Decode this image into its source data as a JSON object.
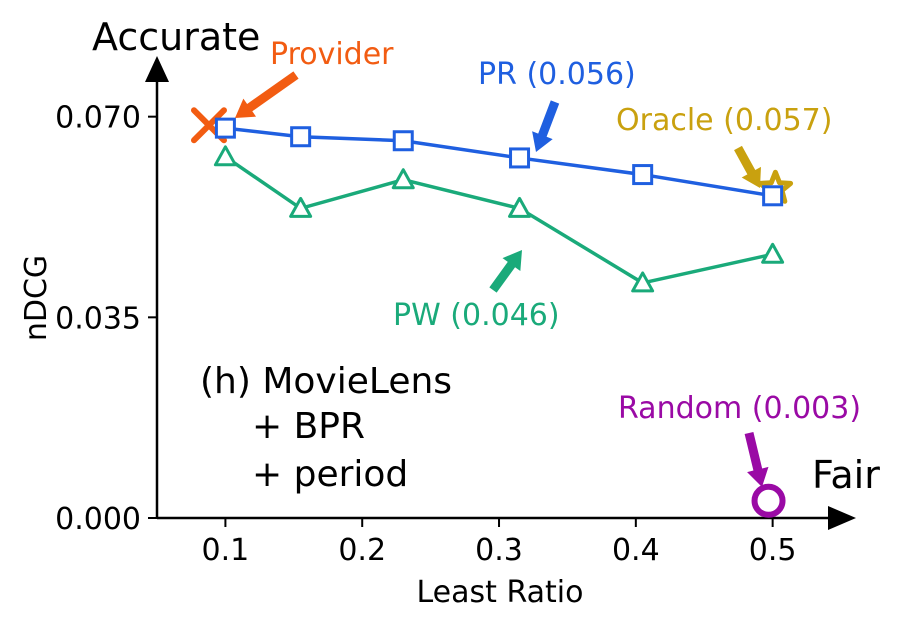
{
  "chart_data": {
    "type": "line",
    "panel_title_lines": [
      "(h) MovieLens",
      "+ BPR",
      "+ period"
    ],
    "xlabel": "Least Ratio",
    "ylabel": "nDCG",
    "xlim": [
      0.05,
      0.52
    ],
    "ylim": [
      0.0,
      0.075
    ],
    "x_ticks": [
      0.1,
      0.2,
      0.3,
      0.4,
      0.5
    ],
    "x_tick_labels": [
      "0.1",
      "0.2",
      "0.3",
      "0.4",
      "0.5"
    ],
    "y_ticks": [
      0.0,
      0.035,
      0.07
    ],
    "y_tick_labels": [
      "0.000",
      "0.035",
      "0.070"
    ],
    "axis_end_labels": {
      "y": "Accurate",
      "x": "Fair"
    },
    "grid": false,
    "series": [
      {
        "name": "PR",
        "marker": "square",
        "color": "#1f5fe0",
        "x": [
          0.1,
          0.155,
          0.23,
          0.315,
          0.405,
          0.5
        ],
        "y": [
          0.068,
          0.0665,
          0.0658,
          0.0628,
          0.0599,
          0.0562
        ]
      },
      {
        "name": "PW",
        "marker": "triangle",
        "color": "#1aaa7a",
        "x": [
          0.1,
          0.155,
          0.23,
          0.315,
          0.405,
          0.5
        ],
        "y": [
          0.063,
          0.054,
          0.059,
          0.054,
          0.041,
          0.046
        ]
      }
    ],
    "points": [
      {
        "name": "Provider",
        "marker": "x",
        "color": "#f25c12",
        "x": 0.088,
        "y": 0.0685
      },
      {
        "name": "Oracle",
        "marker": "star",
        "color": "#c9a10f",
        "x": 0.502,
        "y": 0.0575
      },
      {
        "name": "Random",
        "marker": "circle",
        "color": "#9a0aa5",
        "x": 0.497,
        "y": 0.003
      }
    ],
    "annotations": [
      {
        "text": "Provider",
        "color": "#f25c12",
        "target": "Provider"
      },
      {
        "text": "PR (0.056)",
        "color": "#1f5fe0",
        "target": "PR"
      },
      {
        "text": "Oracle (0.057)",
        "color": "#c9a10f",
        "target": "Oracle"
      },
      {
        "text": "PW (0.046)",
        "color": "#1aaa7a",
        "target": "PW"
      },
      {
        "text": "Random (0.003)",
        "color": "#9a0aa5",
        "target": "Random"
      }
    ]
  }
}
